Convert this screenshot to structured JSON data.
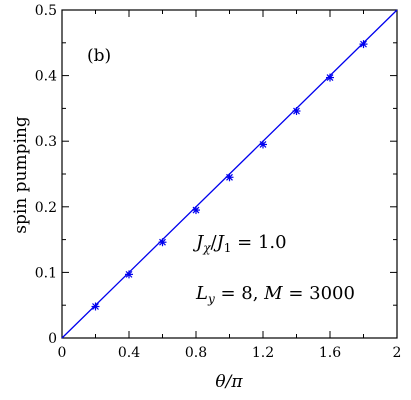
{
  "chart_data": {
    "type": "line",
    "panel_label": "(b)",
    "xlabel": "θ/π",
    "ylabel": "spin pumping",
    "xlim": [
      0,
      2
    ],
    "ylim": [
      0,
      0.5
    ],
    "x_ticks": [
      0,
      0.4,
      0.8,
      1.2,
      1.6,
      2
    ],
    "x_tick_labels": [
      "0",
      "0.4",
      "0.8",
      "1.2",
      "1.6",
      "2"
    ],
    "y_ticks": [
      0,
      0.1,
      0.2,
      0.3,
      0.4,
      0.5
    ],
    "y_tick_labels": [
      "0",
      "0.1",
      "0.2",
      "0.3",
      "0.4",
      "0.5"
    ],
    "annotations": [
      "J_χ/J_1 = 1.0",
      "L_y = 8, M = 3000"
    ],
    "series_color": "#0000ee",
    "grid": false,
    "series": [
      {
        "style": "line",
        "x": [
          0,
          2
        ],
        "y": [
          0,
          0.5
        ]
      },
      {
        "style": "markers",
        "marker": "asterisk",
        "x": [
          0.2,
          0.4,
          0.6,
          0.8,
          1.0,
          1.2,
          1.4,
          1.6,
          1.8
        ],
        "y": [
          0.048,
          0.097,
          0.146,
          0.195,
          0.245,
          0.295,
          0.346,
          0.397,
          0.448
        ]
      }
    ]
  }
}
